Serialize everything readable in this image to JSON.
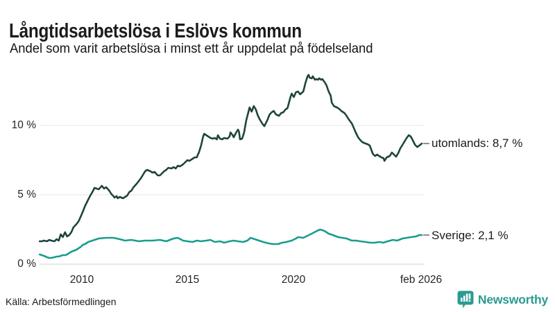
{
  "source": "Källa: Arbetsförmedlingen",
  "branding": {
    "name": "Newsworthy",
    "color": "#2b9b92",
    "icon": "bar-chart-speech-bubble-icon"
  },
  "chart_data": {
    "type": "line",
    "title": "Långtidsarbetslösa i Eslövs kommun",
    "subtitle": "Andel som varit arbetslösa i minst ett år uppdelat på födelseland",
    "xlabel": "",
    "ylabel": "",
    "grid": true,
    "legend_position": "right-end-labels",
    "x_axis": {
      "domain": [
        2008.0,
        2026.17
      ],
      "ticks": [
        "2010",
        "2015",
        "2020",
        "feb 2026"
      ],
      "tick_values": [
        2010,
        2015,
        2020,
        2026.08
      ]
    },
    "y_axis": {
      "domain": [
        0,
        14.1
      ],
      "unit": "%",
      "ticks": [
        "0 %",
        "5 %",
        "10 %"
      ],
      "tick_values": [
        0,
        5,
        10
      ]
    },
    "series": [
      {
        "name": "utomlands",
        "label": "utomlands: 8,7 %",
        "final_value": "8,7 %",
        "color": "#1e443c",
        "points": [
          [
            2008.0,
            1.65
          ],
          [
            2008.1,
            1.65
          ],
          [
            2008.2,
            1.7
          ],
          [
            2008.35,
            1.65
          ],
          [
            2008.45,
            1.75
          ],
          [
            2008.55,
            1.7
          ],
          [
            2008.7,
            1.65
          ],
          [
            2008.8,
            1.8
          ],
          [
            2008.9,
            1.7
          ],
          [
            2009.0,
            2.15
          ],
          [
            2009.1,
            1.95
          ],
          [
            2009.2,
            2.3
          ],
          [
            2009.3,
            2.0
          ],
          [
            2009.4,
            2.1
          ],
          [
            2009.5,
            2.3
          ],
          [
            2009.6,
            2.65
          ],
          [
            2009.75,
            2.9
          ],
          [
            2009.85,
            3.1
          ],
          [
            2009.95,
            3.45
          ],
          [
            2010.05,
            3.8
          ],
          [
            2010.15,
            4.2
          ],
          [
            2010.3,
            4.65
          ],
          [
            2010.4,
            4.95
          ],
          [
            2010.5,
            5.2
          ],
          [
            2010.6,
            5.5
          ],
          [
            2010.7,
            5.45
          ],
          [
            2010.8,
            5.4
          ],
          [
            2010.95,
            5.65
          ],
          [
            2011.05,
            5.45
          ],
          [
            2011.15,
            5.55
          ],
          [
            2011.3,
            5.3
          ],
          [
            2011.4,
            5.05
          ],
          [
            2011.5,
            4.9
          ],
          [
            2011.55,
            4.8
          ],
          [
            2011.65,
            4.9
          ],
          [
            2011.7,
            4.75
          ],
          [
            2011.8,
            4.85
          ],
          [
            2011.95,
            4.75
          ],
          [
            2012.05,
            4.85
          ],
          [
            2012.15,
            4.95
          ],
          [
            2012.25,
            5.2
          ],
          [
            2012.35,
            5.3
          ],
          [
            2012.45,
            5.55
          ],
          [
            2012.6,
            5.8
          ],
          [
            2012.7,
            6.0
          ],
          [
            2012.8,
            6.2
          ],
          [
            2012.9,
            6.45
          ],
          [
            2013.0,
            6.7
          ],
          [
            2013.1,
            6.8
          ],
          [
            2013.25,
            6.7
          ],
          [
            2013.35,
            6.6
          ],
          [
            2013.45,
            6.65
          ],
          [
            2013.6,
            6.4
          ],
          [
            2013.7,
            6.4
          ],
          [
            2013.8,
            6.55
          ],
          [
            2013.9,
            6.7
          ],
          [
            2014.0,
            6.8
          ],
          [
            2014.1,
            6.95
          ],
          [
            2014.25,
            6.9
          ],
          [
            2014.35,
            7.0
          ],
          [
            2014.45,
            6.9
          ],
          [
            2014.55,
            7.1
          ],
          [
            2014.65,
            7.05
          ],
          [
            2014.8,
            7.2
          ],
          [
            2014.9,
            7.35
          ],
          [
            2015.0,
            7.5
          ],
          [
            2015.1,
            7.45
          ],
          [
            2015.25,
            7.6
          ],
          [
            2015.35,
            7.7
          ],
          [
            2015.45,
            7.7
          ],
          [
            2015.5,
            7.9
          ],
          [
            2015.55,
            8.05
          ],
          [
            2015.65,
            8.55
          ],
          [
            2015.75,
            9.2
          ],
          [
            2015.8,
            9.4
          ],
          [
            2015.9,
            9.3
          ],
          [
            2016.0,
            9.2
          ],
          [
            2016.1,
            9.1
          ],
          [
            2016.2,
            9.05
          ],
          [
            2016.3,
            9.1
          ],
          [
            2016.4,
            9.0
          ],
          [
            2016.45,
            9.3
          ],
          [
            2016.55,
            9.05
          ],
          [
            2016.65,
            9.0
          ],
          [
            2016.75,
            9.1
          ],
          [
            2016.9,
            9.05
          ],
          [
            2017.0,
            9.2
          ],
          [
            2017.05,
            9.5
          ],
          [
            2017.15,
            9.3
          ],
          [
            2017.2,
            9.15
          ],
          [
            2017.3,
            9.45
          ],
          [
            2017.4,
            9.7
          ],
          [
            2017.45,
            9.55
          ],
          [
            2017.5,
            9.0
          ],
          [
            2017.6,
            9.05
          ],
          [
            2017.65,
            9.3
          ],
          [
            2017.7,
            9.55
          ],
          [
            2017.75,
            10.0
          ],
          [
            2017.8,
            10.4
          ],
          [
            2017.9,
            11.0
          ],
          [
            2017.95,
            11.3
          ],
          [
            2018.05,
            11.0
          ],
          [
            2018.15,
            11.4
          ],
          [
            2018.25,
            11.15
          ],
          [
            2018.35,
            10.7
          ],
          [
            2018.45,
            10.4
          ],
          [
            2018.55,
            10.15
          ],
          [
            2018.65,
            9.95
          ],
          [
            2018.8,
            10.4
          ],
          [
            2018.9,
            10.8
          ],
          [
            2019.0,
            10.95
          ],
          [
            2019.1,
            11.05
          ],
          [
            2019.2,
            10.8
          ],
          [
            2019.35,
            10.7
          ],
          [
            2019.45,
            10.9
          ],
          [
            2019.55,
            10.95
          ],
          [
            2019.65,
            11.15
          ],
          [
            2019.75,
            11.25
          ],
          [
            2019.9,
            12.1
          ],
          [
            2019.95,
            12.3
          ],
          [
            2020.05,
            12.05
          ],
          [
            2020.15,
            12.4
          ],
          [
            2020.25,
            12.45
          ],
          [
            2020.35,
            12.25
          ],
          [
            2020.5,
            12.45
          ],
          [
            2020.6,
            13.05
          ],
          [
            2020.7,
            13.55
          ],
          [
            2020.75,
            13.65
          ],
          [
            2020.8,
            13.45
          ],
          [
            2020.9,
            13.4
          ],
          [
            2020.95,
            13.55
          ],
          [
            2021.05,
            13.3
          ],
          [
            2021.1,
            13.35
          ],
          [
            2021.2,
            13.3
          ],
          [
            2021.25,
            13.4
          ],
          [
            2021.35,
            13.3
          ],
          [
            2021.4,
            13.35
          ],
          [
            2021.5,
            13.15
          ],
          [
            2021.6,
            12.9
          ],
          [
            2021.7,
            12.45
          ],
          [
            2021.8,
            12.15
          ],
          [
            2021.85,
            11.65
          ],
          [
            2021.95,
            11.4
          ],
          [
            2022.1,
            11.3
          ],
          [
            2022.2,
            11.2
          ],
          [
            2022.3,
            11.05
          ],
          [
            2022.45,
            10.9
          ],
          [
            2022.55,
            10.7
          ],
          [
            2022.65,
            10.45
          ],
          [
            2022.8,
            10.15
          ],
          [
            2022.9,
            9.8
          ],
          [
            2023.0,
            9.45
          ],
          [
            2023.1,
            9.15
          ],
          [
            2023.2,
            8.95
          ],
          [
            2023.3,
            8.8
          ],
          [
            2023.45,
            8.7
          ],
          [
            2023.55,
            8.65
          ],
          [
            2023.65,
            8.55
          ],
          [
            2023.8,
            7.95
          ],
          [
            2023.9,
            7.8
          ],
          [
            2024.0,
            7.9
          ],
          [
            2024.1,
            7.8
          ],
          [
            2024.2,
            7.7
          ],
          [
            2024.3,
            7.65
          ],
          [
            2024.35,
            7.45
          ],
          [
            2024.45,
            7.7
          ],
          [
            2024.6,
            7.8
          ],
          [
            2024.7,
            8.05
          ],
          [
            2024.8,
            7.9
          ],
          [
            2024.9,
            7.75
          ],
          [
            2025.0,
            8.0
          ],
          [
            2025.1,
            8.35
          ],
          [
            2025.2,
            8.6
          ],
          [
            2025.3,
            8.85
          ],
          [
            2025.4,
            9.1
          ],
          [
            2025.5,
            9.3
          ],
          [
            2025.6,
            9.2
          ],
          [
            2025.7,
            8.9
          ],
          [
            2025.8,
            8.6
          ],
          [
            2025.9,
            8.45
          ],
          [
            2026.0,
            8.55
          ],
          [
            2026.12,
            8.7
          ]
        ]
      },
      {
        "name": "Sverige",
        "label": "Sverige: 2,1 %",
        "final_value": "2,1 %",
        "color": "#189d8d",
        "points": [
          [
            2008.0,
            0.7
          ],
          [
            2008.1,
            0.65
          ],
          [
            2008.2,
            0.6
          ],
          [
            2008.35,
            0.5
          ],
          [
            2008.45,
            0.45
          ],
          [
            2008.55,
            0.45
          ],
          [
            2008.7,
            0.5
          ],
          [
            2008.8,
            0.55
          ],
          [
            2008.9,
            0.55
          ],
          [
            2009.0,
            0.6
          ],
          [
            2009.1,
            0.65
          ],
          [
            2009.2,
            0.65
          ],
          [
            2009.3,
            0.7
          ],
          [
            2009.4,
            0.8
          ],
          [
            2009.5,
            0.9
          ],
          [
            2009.6,
            0.95
          ],
          [
            2009.75,
            1.05
          ],
          [
            2009.85,
            1.15
          ],
          [
            2009.95,
            1.25
          ],
          [
            2010.05,
            1.4
          ],
          [
            2010.15,
            1.45
          ],
          [
            2010.3,
            1.6
          ],
          [
            2010.4,
            1.65
          ],
          [
            2010.5,
            1.7
          ],
          [
            2010.6,
            1.75
          ],
          [
            2010.8,
            1.85
          ],
          [
            2011.15,
            1.9
          ],
          [
            2011.5,
            1.9
          ],
          [
            2011.8,
            1.8
          ],
          [
            2012.05,
            1.7
          ],
          [
            2012.35,
            1.75
          ],
          [
            2012.7,
            1.65
          ],
          [
            2013.0,
            1.7
          ],
          [
            2013.35,
            1.7
          ],
          [
            2013.7,
            1.75
          ],
          [
            2014.0,
            1.65
          ],
          [
            2014.35,
            1.85
          ],
          [
            2014.55,
            1.9
          ],
          [
            2014.8,
            1.7
          ],
          [
            2015.0,
            1.65
          ],
          [
            2015.25,
            1.6
          ],
          [
            2015.45,
            1.7
          ],
          [
            2015.65,
            1.65
          ],
          [
            2015.9,
            1.7
          ],
          [
            2016.1,
            1.75
          ],
          [
            2016.3,
            1.6
          ],
          [
            2016.55,
            1.65
          ],
          [
            2016.75,
            1.55
          ],
          [
            2017.0,
            1.65
          ],
          [
            2017.2,
            1.7
          ],
          [
            2017.4,
            1.65
          ],
          [
            2017.65,
            1.6
          ],
          [
            2017.85,
            1.7
          ],
          [
            2018.0,
            1.9
          ],
          [
            2018.2,
            1.8
          ],
          [
            2018.4,
            1.7
          ],
          [
            2018.6,
            1.6
          ],
          [
            2018.85,
            1.5
          ],
          [
            2019.05,
            1.45
          ],
          [
            2019.3,
            1.45
          ],
          [
            2019.5,
            1.55
          ],
          [
            2019.7,
            1.6
          ],
          [
            2019.95,
            1.7
          ],
          [
            2020.15,
            1.85
          ],
          [
            2020.25,
            1.95
          ],
          [
            2020.5,
            1.9
          ],
          [
            2020.7,
            2.05
          ],
          [
            2020.9,
            2.2
          ],
          [
            2021.15,
            2.4
          ],
          [
            2021.3,
            2.5
          ],
          [
            2021.5,
            2.4
          ],
          [
            2021.7,
            2.2
          ],
          [
            2021.9,
            2.1
          ],
          [
            2022.15,
            1.95
          ],
          [
            2022.35,
            1.9
          ],
          [
            2022.55,
            1.85
          ],
          [
            2022.8,
            1.7
          ],
          [
            2023.0,
            1.7
          ],
          [
            2023.2,
            1.65
          ],
          [
            2023.45,
            1.6
          ],
          [
            2023.65,
            1.55
          ],
          [
            2023.9,
            1.55
          ],
          [
            2024.1,
            1.6
          ],
          [
            2024.3,
            1.55
          ],
          [
            2024.5,
            1.65
          ],
          [
            2024.75,
            1.75
          ],
          [
            2024.95,
            1.7
          ],
          [
            2025.2,
            1.85
          ],
          [
            2025.4,
            1.9
          ],
          [
            2025.6,
            1.95
          ],
          [
            2025.85,
            2.0
          ],
          [
            2026.0,
            2.1
          ],
          [
            2026.12,
            2.1
          ]
        ]
      }
    ]
  }
}
